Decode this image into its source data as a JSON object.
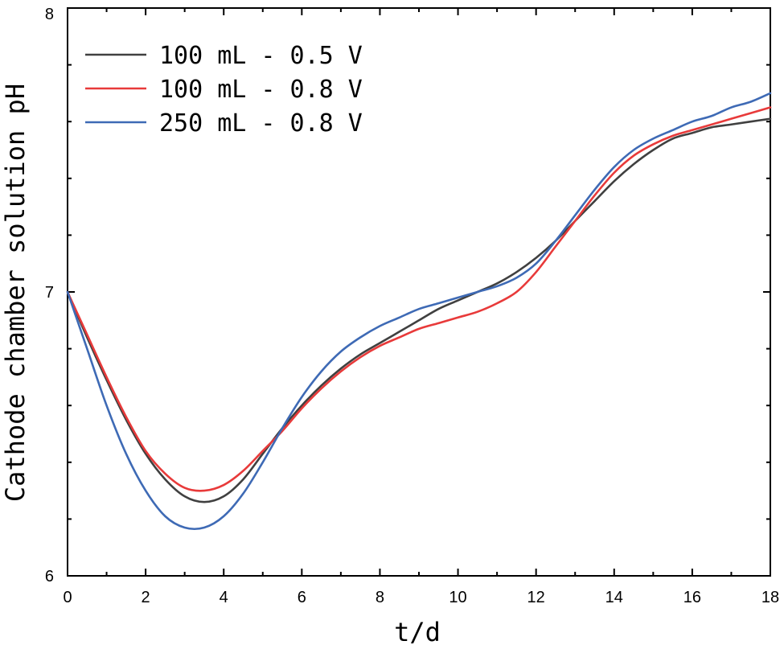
{
  "chart_data": {
    "type": "line",
    "title": "",
    "xlabel": "t/d",
    "ylabel": "Cathode chamber solution pH",
    "xlim": [
      0,
      18
    ],
    "ylim": [
      6,
      8
    ],
    "x_major_ticks": [
      0,
      2,
      4,
      6,
      8,
      10,
      12,
      14,
      16,
      18
    ],
    "y_major_ticks": [
      6,
      7,
      8
    ],
    "x_tick_labels": [
      "0",
      "2",
      "4",
      "6",
      "8",
      "10",
      "12",
      "14",
      "16",
      "18"
    ],
    "y_tick_labels": [
      "6",
      "7",
      "8"
    ],
    "grid": false,
    "legend_position": "top-left",
    "series": [
      {
        "name": "100 mL - 0.5 V",
        "color": "#404040",
        "x": [
          0,
          0.5,
          1,
          1.5,
          2,
          2.5,
          3,
          3.5,
          4,
          4.5,
          5,
          5.5,
          6,
          6.5,
          7,
          7.5,
          8,
          8.5,
          9,
          9.5,
          10,
          10.5,
          11,
          11.5,
          12,
          12.5,
          13,
          13.5,
          14,
          14.5,
          15,
          15.5,
          16,
          16.5,
          17,
          17.5,
          18
        ],
        "y": [
          7.0,
          6.84,
          6.69,
          6.55,
          6.43,
          6.34,
          6.28,
          6.26,
          6.28,
          6.34,
          6.43,
          6.52,
          6.6,
          6.67,
          6.73,
          6.78,
          6.82,
          6.86,
          6.9,
          6.94,
          6.97,
          7.0,
          7.03,
          7.07,
          7.12,
          7.18,
          7.25,
          7.32,
          7.39,
          7.45,
          7.5,
          7.54,
          7.56,
          7.58,
          7.59,
          7.6,
          7.61
        ]
      },
      {
        "name": "100 mL - 0.8 V",
        "color": "#e83a3a",
        "x": [
          0,
          0.5,
          1,
          1.5,
          2,
          2.5,
          3,
          3.5,
          4,
          4.5,
          5,
          5.5,
          6,
          6.5,
          7,
          7.5,
          8,
          8.5,
          9,
          9.5,
          10,
          10.5,
          11,
          11.5,
          12,
          12.5,
          13,
          13.5,
          14,
          14.5,
          15,
          15.5,
          16,
          16.5,
          17,
          17.5,
          18
        ],
        "y": [
          7.0,
          6.85,
          6.7,
          6.56,
          6.44,
          6.36,
          6.31,
          6.3,
          6.32,
          6.37,
          6.44,
          6.51,
          6.59,
          6.66,
          6.72,
          6.77,
          6.81,
          6.84,
          6.87,
          6.89,
          6.91,
          6.93,
          6.96,
          7.0,
          7.07,
          7.16,
          7.25,
          7.34,
          7.42,
          7.48,
          7.52,
          7.55,
          7.57,
          7.59,
          7.61,
          7.63,
          7.65
        ]
      },
      {
        "name": "250 mL - 0.8 V",
        "color": "#3e6ab5",
        "x": [
          0,
          0.5,
          1,
          1.5,
          2,
          2.5,
          3,
          3.5,
          4,
          4.5,
          5,
          5.5,
          6,
          6.5,
          7,
          7.5,
          8,
          8.5,
          9,
          9.5,
          10,
          10.5,
          11,
          11.5,
          12,
          12.5,
          13,
          13.5,
          14,
          14.5,
          15,
          15.5,
          16,
          16.5,
          17,
          17.5,
          18
        ],
        "y": [
          7.0,
          6.8,
          6.6,
          6.43,
          6.3,
          6.21,
          6.17,
          6.17,
          6.21,
          6.29,
          6.4,
          6.52,
          6.63,
          6.72,
          6.79,
          6.84,
          6.88,
          6.91,
          6.94,
          6.96,
          6.98,
          7.0,
          7.02,
          7.05,
          7.1,
          7.18,
          7.27,
          7.36,
          7.44,
          7.5,
          7.54,
          7.57,
          7.6,
          7.62,
          7.65,
          7.67,
          7.7
        ]
      }
    ]
  }
}
